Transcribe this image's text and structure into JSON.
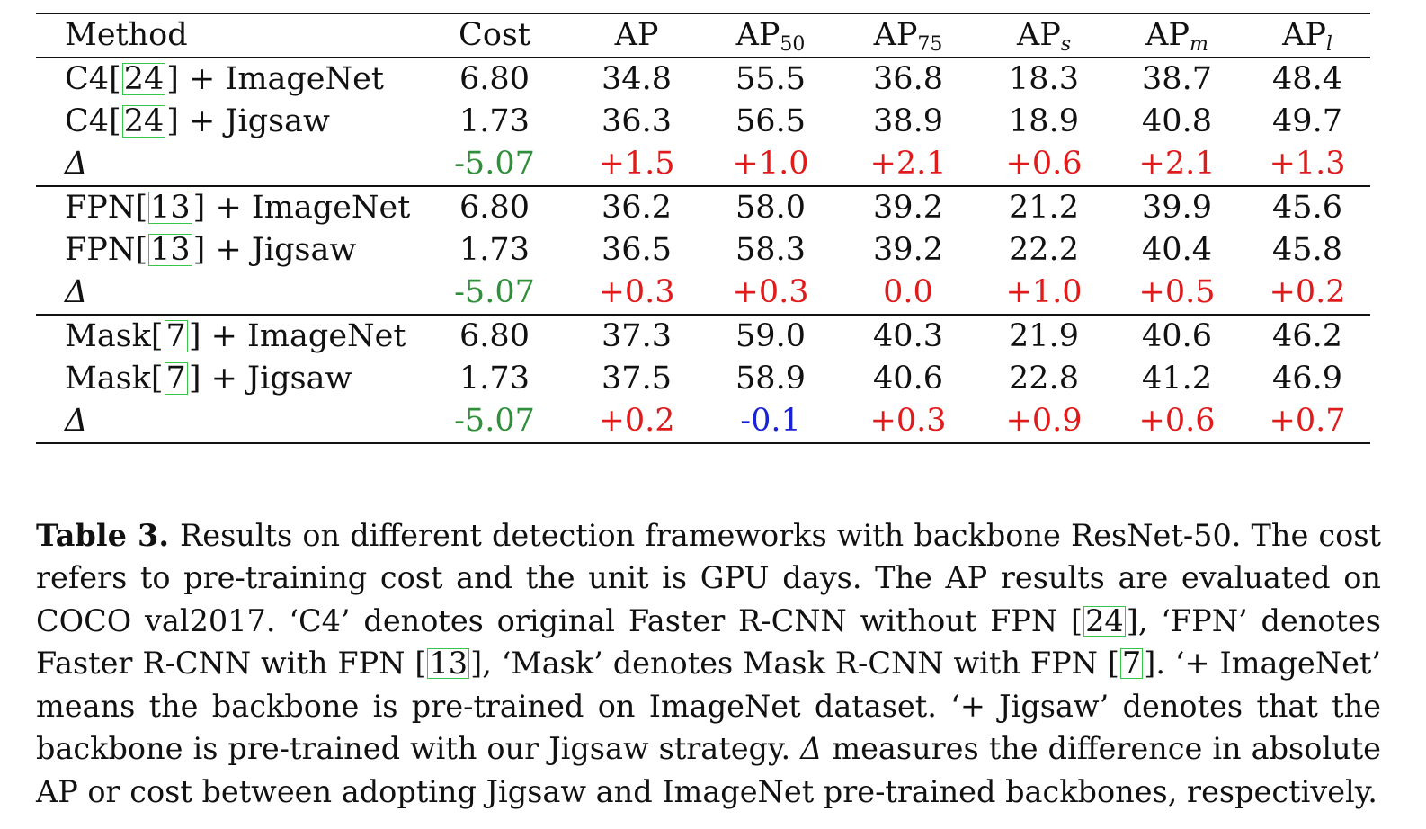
{
  "table": {
    "headers": {
      "method": "Method",
      "cost": "Cost",
      "ap": "AP",
      "ap50": {
        "base": "AP",
        "sub": "50"
      },
      "ap75": {
        "base": "AP",
        "sub": "75"
      },
      "aps": {
        "base": "AP",
        "sub": "s"
      },
      "apm": {
        "base": "AP",
        "sub": "m"
      },
      "apl": {
        "base": "AP",
        "sub": "l"
      }
    },
    "groups": [
      {
        "rows": [
          {
            "method": {
              "name": "C4",
              "ref": "24",
              "suffix": "+ ImageNet"
            },
            "values": [
              "6.80",
              "34.8",
              "55.5",
              "36.8",
              "18.3",
              "38.7",
              "48.4"
            ]
          },
          {
            "method": {
              "name": "C4",
              "ref": "24",
              "suffix": "+ Jigsaw"
            },
            "values": [
              "1.73",
              "36.3",
              "56.5",
              "38.9",
              "18.9",
              "40.8",
              "49.7"
            ]
          }
        ],
        "delta": {
          "symbol": "Δ",
          "values": [
            "-5.07",
            "+1.5",
            "+1.0",
            "+2.1",
            "+0.6",
            "+2.1",
            "+1.3"
          ],
          "colors": [
            "green",
            "red",
            "red",
            "red",
            "red",
            "red",
            "red"
          ]
        }
      },
      {
        "rows": [
          {
            "method": {
              "name": "FPN",
              "ref": "13",
              "suffix": "+ ImageNet"
            },
            "values": [
              "6.80",
              "36.2",
              "58.0",
              "39.2",
              "21.2",
              "39.9",
              "45.6"
            ]
          },
          {
            "method": {
              "name": "FPN",
              "ref": "13",
              "suffix": "+ Jigsaw"
            },
            "values": [
              "1.73",
              "36.5",
              "58.3",
              "39.2",
              "22.2",
              "40.4",
              "45.8"
            ]
          }
        ],
        "delta": {
          "symbol": "Δ",
          "values": [
            "-5.07",
            "+0.3",
            "+0.3",
            "0.0",
            "+1.0",
            "+0.5",
            "+0.2"
          ],
          "colors": [
            "green",
            "red",
            "red",
            "red",
            "red",
            "red",
            "red"
          ]
        }
      },
      {
        "rows": [
          {
            "method": {
              "name": "Mask",
              "ref": "7",
              "suffix": "+ ImageNet"
            },
            "values": [
              "6.80",
              "37.3",
              "59.0",
              "40.3",
              "21.9",
              "40.6",
              "46.2"
            ]
          },
          {
            "method": {
              "name": "Mask",
              "ref": "7",
              "suffix": "+ Jigsaw"
            },
            "values": [
              "1.73",
              "37.5",
              "58.9",
              "40.6",
              "22.8",
              "41.2",
              "46.9"
            ]
          }
        ],
        "delta": {
          "symbol": "Δ",
          "values": [
            "-5.07",
            "+0.2",
            "-0.1",
            "+0.3",
            "+0.9",
            "+0.6",
            "+0.7"
          ],
          "colors": [
            "green",
            "red",
            "blue",
            "red",
            "red",
            "red",
            "red"
          ]
        }
      }
    ]
  },
  "caption": {
    "label": "Table 3.",
    "t1": "Results on different detection frameworks with backbone ResNet-50. The cost refers to pre-training cost and the unit is GPU days. The AP results are evaluated on COCO val2017. ‘C4’ denotes original Faster R-CNN without FPN ",
    "ref1": "24",
    "t2": ", ‘FPN’ denotes Faster R-CNN with FPN ",
    "ref2": "13",
    "t3": ", ‘Mask’ denotes Mask R-CNN with FPN ",
    "ref3": "7",
    "t4": ". ‘+ ImageNet’ means the backbone is pre-trained on ImageNet dataset. ‘+ Jigsaw’ denotes that the backbone is pre-trained with our Jigsaw strategy. ",
    "delta_symbol": "Δ",
    "t5": " measures the difference in absolute AP or cost between adopting Jigsaw and ImageNet pre-trained backbones, respectively."
  },
  "colors": {
    "green": "#2f8f3a",
    "red": "#e01b1b",
    "blue": "#1a22d6",
    "cite_box": "#39c44a",
    "text": "#111111"
  }
}
